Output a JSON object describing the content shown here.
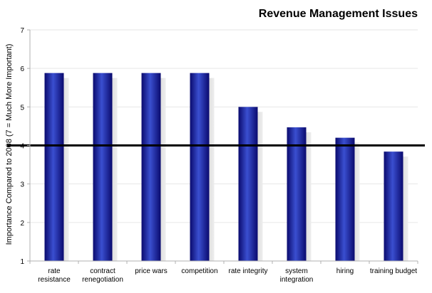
{
  "chart_data": {
    "type": "bar",
    "title": "Revenue Management Issues",
    "xlabel": "",
    "ylabel": "Importance Compared to 2008 (7 = Much More Important)",
    "ylim": [
      1,
      7
    ],
    "yticks": [
      "1",
      "2",
      "3",
      "4",
      "5",
      "6",
      "7"
    ],
    "categories": [
      [
        "rate",
        "resistance"
      ],
      [
        "contract",
        "renegotiation"
      ],
      [
        "price wars"
      ],
      [
        "competition"
      ],
      [
        "rate integrity"
      ],
      [
        "system",
        "integration"
      ],
      [
        "hiring"
      ],
      [
        "training budget"
      ]
    ],
    "values": [
      5.88,
      5.88,
      5.88,
      5.88,
      5.0,
      4.47,
      4.2,
      3.84
    ],
    "reference_line": 4,
    "grid": true,
    "legend": "none",
    "colors": {
      "bar_dark": "#0a0a6e",
      "bar_mid": "#1f2fb0",
      "bar_light": "#3a4fd0",
      "reference_line": "#000000",
      "shadow": "#c8c8c8"
    }
  }
}
